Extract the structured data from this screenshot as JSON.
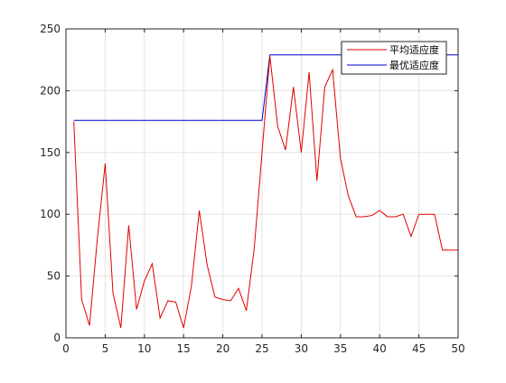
{
  "chart_data": {
    "type": "line",
    "title": "",
    "xlabel": "",
    "ylabel": "",
    "xlim": [
      0,
      50
    ],
    "ylim": [
      0,
      250
    ],
    "xticks": [
      0,
      5,
      10,
      15,
      20,
      25,
      30,
      35,
      40,
      45,
      50
    ],
    "yticks": [
      0,
      50,
      100,
      150,
      200,
      250
    ],
    "grid": true,
    "legend_position": "top-right",
    "series": [
      {
        "name": "平均适应度",
        "color": "#e00000",
        "x": [
          1,
          2,
          3,
          4,
          5,
          6,
          7,
          8,
          9,
          10,
          11,
          12,
          13,
          14,
          15,
          16,
          17,
          18,
          19,
          20,
          21,
          22,
          23,
          24,
          25,
          26,
          27,
          28,
          29,
          30,
          31,
          32,
          33,
          34,
          35,
          36,
          37,
          38,
          39,
          40,
          41,
          42,
          43,
          44,
          45,
          46,
          47,
          48,
          49,
          50
        ],
        "y": [
          175,
          31,
          10,
          80,
          141,
          36,
          8,
          91,
          23,
          46,
          60,
          16,
          30,
          29,
          8,
          42,
          103,
          59,
          33,
          31,
          30,
          40,
          22,
          72,
          150,
          228,
          171,
          152,
          203,
          150,
          215,
          127,
          203,
          217,
          145,
          115,
          98,
          98,
          99,
          103,
          98,
          98,
          100,
          82,
          100,
          100,
          100,
          71,
          71,
          71
        ]
      },
      {
        "name": "最优适应度",
        "color": "#0000cc",
        "x": [
          1,
          2,
          3,
          4,
          5,
          6,
          7,
          8,
          9,
          10,
          11,
          12,
          13,
          14,
          15,
          16,
          17,
          18,
          19,
          20,
          21,
          22,
          23,
          24,
          25,
          26,
          27,
          28,
          29,
          30,
          31,
          32,
          33,
          34,
          35,
          36,
          37,
          38,
          39,
          40,
          41,
          42,
          43,
          44,
          45,
          46,
          47,
          48,
          49,
          50
        ],
        "y": [
          176,
          176,
          176,
          176,
          176,
          176,
          176,
          176,
          176,
          176,
          176,
          176,
          176,
          176,
          176,
          176,
          176,
          176,
          176,
          176,
          176,
          176,
          176,
          176,
          176,
          229,
          229,
          229,
          229,
          229,
          229,
          229,
          229,
          229,
          229,
          229,
          229,
          229,
          229,
          229,
          229,
          229,
          229,
          229,
          229,
          229,
          229,
          229,
          229,
          229
        ]
      }
    ]
  }
}
